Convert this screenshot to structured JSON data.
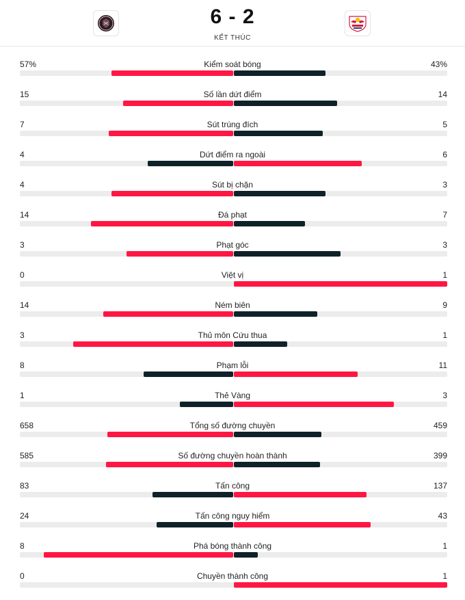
{
  "match": {
    "score": "6 - 2",
    "status": "KẾT THÚC",
    "home_logo": "inter-miami-crest",
    "away_logo": "new-york-red-bulls-crest"
  },
  "colors": {
    "leader": "#ff1744",
    "trailer": "#0f2229",
    "track": "#ececec"
  },
  "stats": [
    {
      "label": "Kiểm soát bóng",
      "home": "57%",
      "away": "43%",
      "home_fill": 0.57,
      "away_fill": 0.43
    },
    {
      "label": "Số lần dứt điểm",
      "home": "15",
      "away": "14",
      "home_fill": 0.517,
      "away_fill": 0.483
    },
    {
      "label": "Sút trúng đích",
      "home": "7",
      "away": "5",
      "home_fill": 0.583,
      "away_fill": 0.417
    },
    {
      "label": "Dứt điểm ra ngoài",
      "home": "4",
      "away": "6",
      "home_fill": 0.4,
      "away_fill": 0.6
    },
    {
      "label": "Sút bị chặn",
      "home": "4",
      "away": "3",
      "home_fill": 0.571,
      "away_fill": 0.429
    },
    {
      "label": "Đá phạt",
      "home": "14",
      "away": "7",
      "home_fill": 0.667,
      "away_fill": 0.333
    },
    {
      "label": "Phạt góc",
      "home": "3",
      "away": "3",
      "home_fill": 0.5,
      "away_fill": 0.5
    },
    {
      "label": "Việt vị",
      "home": "0",
      "away": "1",
      "home_fill": 0.0,
      "away_fill": 1.0
    },
    {
      "label": "Ném biên",
      "home": "14",
      "away": "9",
      "home_fill": 0.609,
      "away_fill": 0.391
    },
    {
      "label": "Thủ môn Cứu thua",
      "home": "3",
      "away": "1",
      "home_fill": 0.75,
      "away_fill": 0.25
    },
    {
      "label": "Phạm lỗi",
      "home": "8",
      "away": "11",
      "home_fill": 0.421,
      "away_fill": 0.579
    },
    {
      "label": "Thẻ Vàng",
      "home": "1",
      "away": "3",
      "home_fill": 0.25,
      "away_fill": 0.75
    },
    {
      "label": "Tổng số đường chuyền",
      "home": "658",
      "away": "459",
      "home_fill": 0.589,
      "away_fill": 0.411
    },
    {
      "label": "Số đường chuyền hoàn thành",
      "home": "585",
      "away": "399",
      "home_fill": 0.595,
      "away_fill": 0.405
    },
    {
      "label": "Tấn công",
      "home": "83",
      "away": "137",
      "home_fill": 0.377,
      "away_fill": 0.623
    },
    {
      "label": "Tấn công nguy hiểm",
      "home": "24",
      "away": "43",
      "home_fill": 0.358,
      "away_fill": 0.642
    },
    {
      "label": "Phá bóng thành công",
      "home": "8",
      "away": "1",
      "home_fill": 0.889,
      "away_fill": 0.111
    },
    {
      "label": "Chuyền thành công",
      "home": "0",
      "away": "1",
      "home_fill": 0.0,
      "away_fill": 1.0
    }
  ]
}
